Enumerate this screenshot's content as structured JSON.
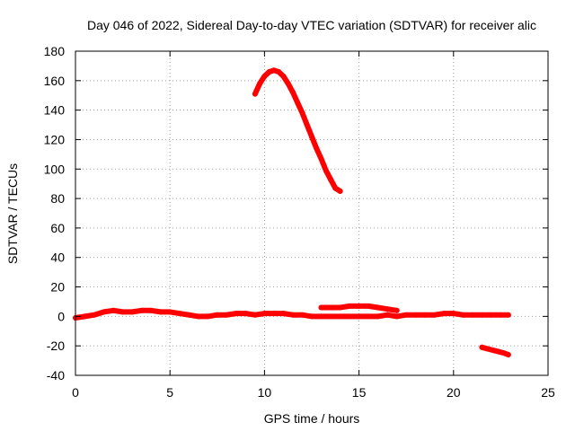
{
  "chart_data": {
    "type": "scatter",
    "title": "Day 046 of 2022, Sidereal Day-to-day VTEC variation (SDTVAR) for receiver alic",
    "xlabel": "GPS time / hours",
    "ylabel": "SDTVAR / TECUs",
    "xlim": [
      0,
      25
    ],
    "ylim": [
      -40,
      180
    ],
    "x_ticks": [
      0,
      5,
      10,
      15,
      20,
      25
    ],
    "y_ticks": [
      -40,
      -20,
      0,
      20,
      40,
      60,
      80,
      100,
      120,
      140,
      160,
      180
    ],
    "grid": true,
    "color": "#ff0000",
    "series": [
      {
        "name": "main-band",
        "x": [
          0,
          0.5,
          1,
          1.5,
          2,
          2.5,
          3,
          3.5,
          4,
          4.5,
          5,
          5.5,
          6,
          6.5,
          7,
          7.5,
          8,
          8.5,
          9,
          9.5,
          10,
          10.5,
          11,
          11.5,
          12,
          12.5,
          13,
          13.5,
          14,
          14.5,
          15,
          15.5,
          16,
          16.5,
          17,
          17.5,
          18,
          18.5,
          19,
          19.5,
          20,
          20.5,
          21,
          21.5,
          22,
          22.5,
          22.9
        ],
        "y": [
          -1,
          0,
          1,
          3,
          4,
          3,
          3,
          4,
          4,
          3,
          3,
          2,
          1,
          0,
          0,
          1,
          1,
          2,
          2,
          1,
          2,
          2,
          2,
          1,
          1,
          0,
          0,
          0,
          0,
          0,
          0,
          0,
          0,
          1,
          0,
          1,
          1,
          1,
          1,
          2,
          2,
          1,
          1,
          1,
          1,
          1,
          1
        ]
      },
      {
        "name": "peak-arc",
        "x": [
          9.5,
          9.75,
          10,
          10.25,
          10.5,
          10.75,
          11,
          11.25,
          11.5,
          11.75,
          12,
          12.25,
          12.5,
          12.75,
          13,
          13.25,
          13.5,
          13.75,
          14
        ],
        "y": [
          151,
          158,
          163,
          166,
          167,
          166,
          163,
          158,
          152,
          145,
          138,
          130,
          122,
          114,
          107,
          99,
          93,
          87,
          85
        ]
      },
      {
        "name": "upper-segment",
        "x": [
          13,
          13.5,
          14,
          14.5,
          15,
          15.5,
          16,
          16.5,
          17
        ],
        "y": [
          6,
          6,
          6,
          7,
          7,
          7,
          6,
          5,
          4
        ]
      },
      {
        "name": "lower-segment",
        "x": [
          21.5,
          21.8,
          22.1,
          22.4,
          22.7,
          22.9
        ],
        "y": [
          -21,
          -22,
          -23,
          -24,
          -25,
          -26
        ]
      }
    ]
  }
}
